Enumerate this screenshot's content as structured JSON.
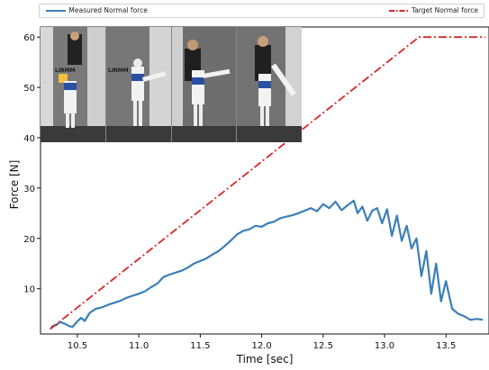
{
  "chart_data": {
    "type": "line",
    "xlabel": "Time [sec]",
    "ylabel": "Force [N]",
    "xlim": [
      10.2,
      13.85
    ],
    "ylim": [
      1,
      62
    ],
    "xticks": [
      "10.5",
      "11.0",
      "11.5",
      "12.0",
      "12.5",
      "13.0",
      "13.5"
    ],
    "xtick_values": [
      10.5,
      11.0,
      11.5,
      12.0,
      12.5,
      13.0,
      13.5
    ],
    "yticks": [
      "10",
      "20",
      "30",
      "40",
      "50",
      "60"
    ],
    "ytick_values": [
      10,
      20,
      30,
      40,
      50,
      60
    ],
    "legend": {
      "placement": "top (outside, full width)"
    },
    "series": [
      {
        "name": "Measured Normal force",
        "color": "#3a7fb8",
        "style": "solid",
        "x": [
          10.28,
          10.3,
          10.33,
          10.36,
          10.4,
          10.43,
          10.46,
          10.5,
          10.53,
          10.56,
          10.6,
          10.65,
          10.7,
          10.75,
          10.8,
          10.85,
          10.9,
          10.95,
          11.0,
          11.05,
          11.1,
          11.15,
          11.2,
          11.25,
          11.3,
          11.35,
          11.4,
          11.45,
          11.5,
          11.55,
          11.6,
          11.65,
          11.7,
          11.75,
          11.8,
          11.85,
          11.9,
          11.95,
          12.0,
          12.05,
          12.1,
          12.15,
          12.2,
          12.25,
          12.3,
          12.35,
          12.4,
          12.45,
          12.5,
          12.55,
          12.6,
          12.65,
          12.7,
          12.75,
          12.78,
          12.82,
          12.86,
          12.9,
          12.94,
          12.98,
          13.02,
          13.06,
          13.1,
          13.14,
          13.18,
          13.22,
          13.26,
          13.3,
          13.34,
          13.38,
          13.42,
          13.46,
          13.5,
          13.55,
          13.6,
          13.65,
          13.7,
          13.75,
          13.8
        ],
        "y": [
          2.0,
          2.6,
          2.8,
          3.4,
          3.0,
          2.6,
          2.4,
          3.5,
          4.2,
          3.6,
          5.2,
          6.0,
          6.3,
          6.8,
          7.2,
          7.6,
          8.2,
          8.6,
          9.0,
          9.5,
          10.3,
          11.0,
          12.3,
          12.8,
          13.2,
          13.6,
          14.2,
          15.0,
          15.5,
          16.0,
          16.8,
          17.5,
          18.5,
          19.6,
          20.8,
          21.5,
          21.8,
          22.5,
          22.3,
          23.0,
          23.3,
          24.0,
          24.3,
          24.6,
          25.0,
          25.5,
          26.0,
          25.4,
          26.8,
          26.0,
          27.3,
          25.6,
          26.6,
          27.5,
          25.0,
          26.3,
          23.5,
          25.5,
          26.0,
          23.0,
          25.8,
          20.5,
          24.5,
          19.5,
          22.5,
          18.0,
          20.0,
          12.5,
          17.5,
          9.0,
          15.0,
          7.5,
          11.5,
          6.0,
          5.0,
          4.5,
          3.8,
          4.0,
          3.8
        ]
      },
      {
        "name": "Target Normal force",
        "color": "#d62728",
        "style": "dashdot",
        "x": [
          10.28,
          13.28,
          13.82
        ],
        "y": [
          2.0,
          60.0,
          60.0
        ]
      }
    ]
  },
  "legend": {
    "measured_label": "Measured Normal force",
    "target_label": "Target Normal force"
  },
  "photo_strip": {
    "panel_count": 4,
    "logo_text": [
      "LIRMM",
      "LIRMM"
    ]
  }
}
